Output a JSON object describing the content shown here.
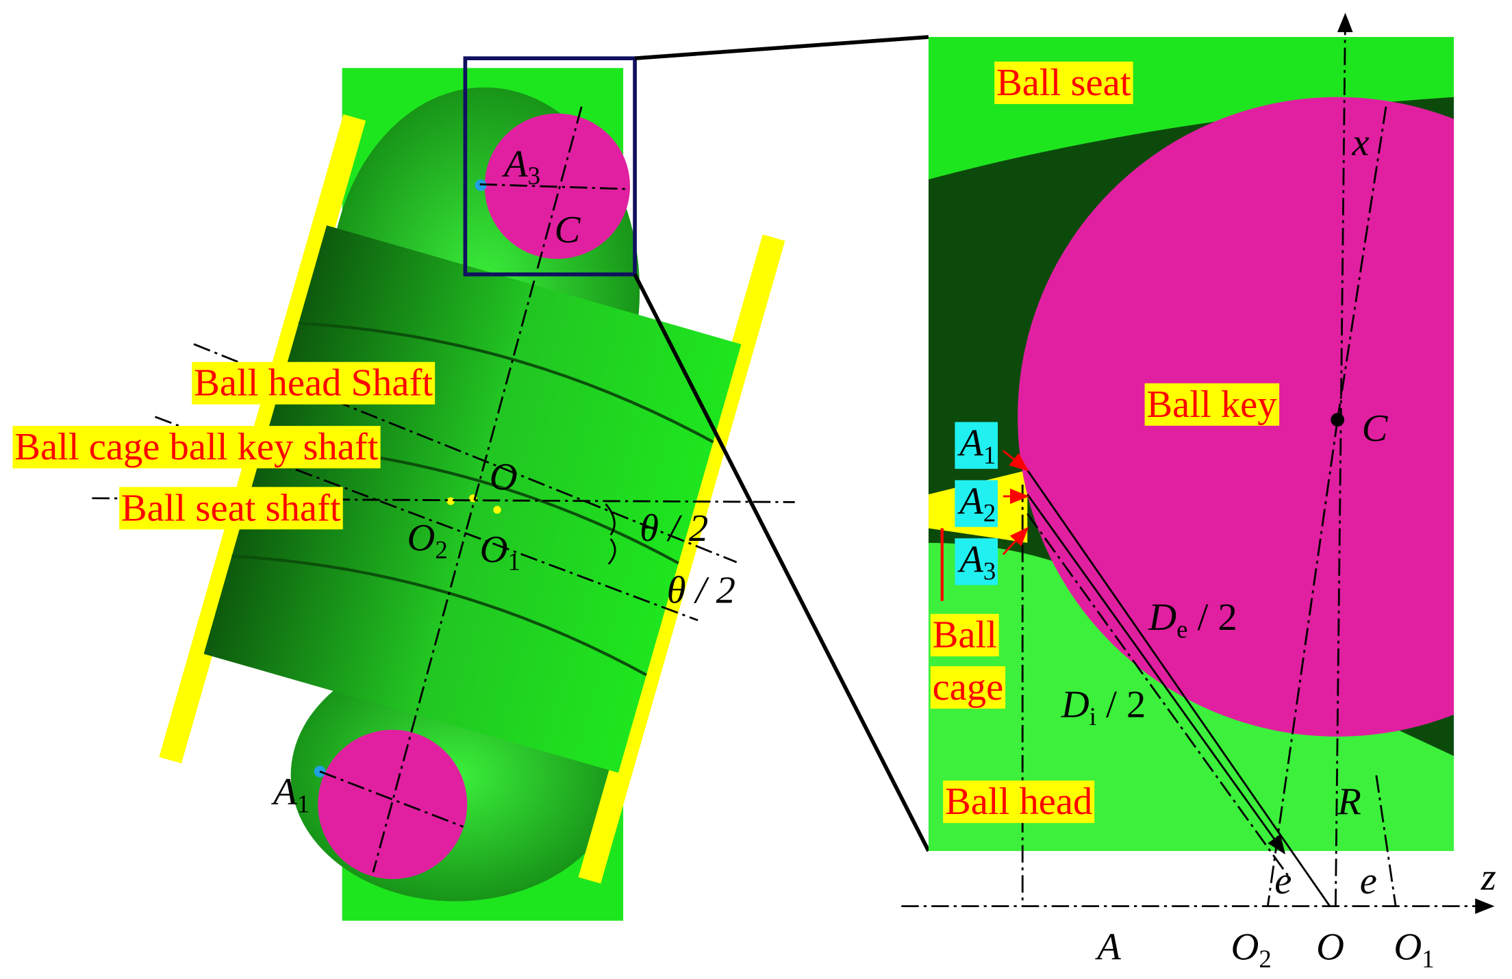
{
  "left_view": {
    "shafts": {
      "ball_head_shaft": "Ball head Shaft",
      "ball_cage_ball_key_shaft": "Ball cage ball key shaft",
      "ball_seat_shaft": "Ball seat shaft"
    },
    "points": [
      {
        "base": "A",
        "sub": "3"
      },
      {
        "base": "C"
      },
      {
        "base": "O"
      },
      {
        "base": "O",
        "sub": "2"
      },
      {
        "base": "O",
        "sub": "1"
      },
      {
        "base": "A",
        "sub": "1"
      }
    ],
    "angles": [
      "θ / 2",
      "θ / 2"
    ]
  },
  "right_view": {
    "parts": {
      "ball_seat": "Ball seat",
      "ball_key": "Ball key",
      "ball_head": "Ball head",
      "ball_cage": [
        "Ball",
        "cage"
      ]
    },
    "contact_points": [
      {
        "base": "A",
        "sub": "1"
      },
      {
        "base": "A",
        "sub": "2"
      },
      {
        "base": "A",
        "sub": "3"
      }
    ],
    "dimensions": [
      {
        "base": "D",
        "sub": "e",
        "suffix": " / 2"
      },
      {
        "base": "D",
        "sub": "i",
        "suffix": " / 2"
      },
      {
        "base": "R"
      },
      {
        "base": "e"
      },
      {
        "base": "e"
      }
    ],
    "axes": {
      "x": "x",
      "z": "z"
    },
    "points": [
      {
        "base": "C"
      },
      {
        "base": "A"
      },
      {
        "base": "O",
        "sub": "2"
      },
      {
        "base": "O"
      },
      {
        "base": "O",
        "sub": "1"
      }
    ]
  }
}
